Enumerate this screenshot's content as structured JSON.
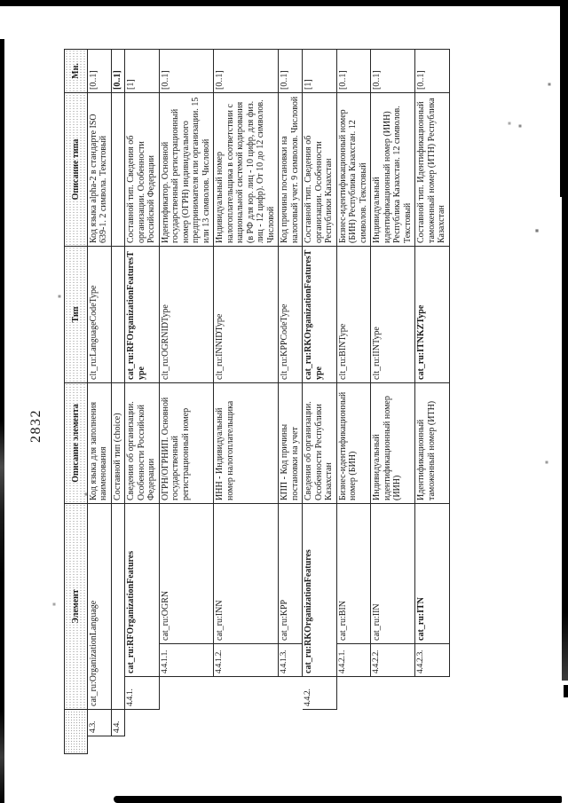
{
  "page": {
    "number": "2832"
  },
  "table": {
    "headers": {
      "no": "",
      "element": "Элемент",
      "element_desc": "Описание элемента",
      "type": "Тип",
      "type_desc": "Описание типа",
      "mult": "Мн."
    },
    "rows": [
      {
        "no": "4.3.",
        "depth": 0,
        "element": "cat_ru:OrganizationLanguage",
        "element_bold": false,
        "element_desc": "Код языка для заполнения наименования",
        "type": "clt_ru:LanguageCodeType",
        "type_bold": false,
        "type_desc": "Код языка alpha-2 в стандарте ISO 639-1. 2 символа. Текстовый",
        "mult": "[0..1]",
        "mult_bold": false
      },
      {
        "no": "4.4.",
        "depth": 0,
        "element": "",
        "element_bold": false,
        "element_desc": "Составной тип (choice)",
        "type": "",
        "type_bold": false,
        "type_desc": "",
        "mult": "[0..1]",
        "mult_bold": true
      },
      {
        "no": "4.4.1.",
        "depth": 1,
        "element": "cat_ru:RFOrganizationFeatures",
        "element_bold": true,
        "element_desc": "Сведения об организации. Особенности Российской Федерации",
        "type": "cat_ru:RFOrganizationFeaturesType",
        "type_bold": true,
        "type_desc": "Составной тип. Сведения об организации. Особенности Российской Федерации",
        "mult": "[1]",
        "mult_bold": false
      },
      {
        "no": "4.4.1.1.",
        "depth": 2,
        "element": "cat_ru:OGRN",
        "element_bold": false,
        "element_desc": "ОГРН/ОГРНИП. Основной государственный регистрационный номер",
        "type": "clt_ru:OGRNIDType",
        "type_bold": false,
        "type_desc": "Идентификатор. Основной государственный регистрационный номер (ОГРН) индивидуального предпринимателя или организации. 15 или 13 символов. Числовой",
        "mult": "[0..1]",
        "mult_bold": false
      },
      {
        "no": "4.4.1.2.",
        "depth": 2,
        "element": "cat_ru:INN",
        "element_bold": false,
        "element_desc": "ИНН - Индивидуальный номер налогоплательщика",
        "type": "clt_ru:INNIDType",
        "type_bold": false,
        "type_desc": "Индивидуальный номер налогоплательщика в соответствии с национальной системой кодирования (в РФ для юр. лиц - 10 цифр, для физ. лиц - 12 цифр). От 10 до 12 символов. Числовой",
        "mult": "[0..1]",
        "mult_bold": false
      },
      {
        "no": "4.4.1.3.",
        "depth": 2,
        "element": "cat_ru:KPP",
        "element_bold": false,
        "element_desc": "КПП - Код причины постановки на учет",
        "type": "clt_ru:KPPCodeType",
        "type_bold": false,
        "type_desc": "Код причины постановки на налоговый учет. 9 символов. Числовой",
        "mult": "[0..1]",
        "mult_bold": false
      },
      {
        "no": "4.4.2.",
        "depth": 1,
        "element": "cat_ru:RKOrganizationFeatures",
        "element_bold": true,
        "element_desc": "Сведения об организации. Особенности Республики Казахстан",
        "type": "cat_ru:RKOrganizationFeaturesType",
        "type_bold": true,
        "type_desc": "Составной тип. Сведения об организации. Особенности Республики Казахстан",
        "mult": "[1]",
        "mult_bold": false
      },
      {
        "no": "4.4.2.1.",
        "depth": 2,
        "element": "cat_ru:BIN",
        "element_bold": false,
        "element_desc": "Бизнес-идентификационный номер (БИН)",
        "type": "clt_ru:BINType",
        "type_bold": false,
        "type_desc": "Бизнес-идентификационный номер (БИН) Республика Казахстан. 12 символов. Текстовый",
        "mult": "[0..1]",
        "mult_bold": false
      },
      {
        "no": "4.4.2.2.",
        "depth": 2,
        "element": "cat_ru:IIN",
        "element_bold": false,
        "element_desc": "Индивидуальный идентификационный номер (ИИН)",
        "type": "clt_ru:IINType",
        "type_bold": false,
        "type_desc": "Индивидуальный идентификационный номер (ИИН) Республика Казахстан. 12 символов. Текстовый",
        "mult": "[0..1]",
        "mult_bold": false
      },
      {
        "no": "4.4.2.3.",
        "depth": 2,
        "element": "cat_ru:ITN",
        "element_bold": true,
        "element_desc": "Идентификационный таможенный номер (ИТН)",
        "type": "cat_ru:ITNKZType",
        "type_bold": true,
        "type_desc": "Составной тип. Идентификационный таможенный номер (ИТН) Республика Казахстан",
        "mult": "[0..1]",
        "mult_bold": false
      }
    ]
  }
}
